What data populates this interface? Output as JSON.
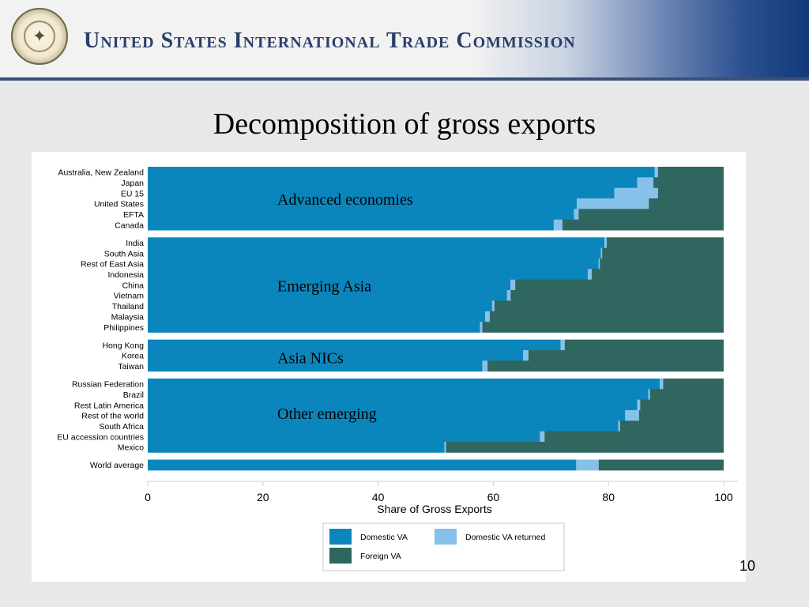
{
  "header": {
    "org_name": "United States International Trade Commission",
    "seal_icon": "usitc-seal-icon"
  },
  "slide": {
    "title": "Decomposition of gross exports",
    "page_number": "10"
  },
  "colors": {
    "domestic": "#0a86bd",
    "returned": "#85c1e9",
    "foreign": "#2f6660",
    "panel_bg": "#ffffff",
    "gap": "#ffffff"
  },
  "chart_data": {
    "type": "bar",
    "orientation": "horizontal",
    "stacked": true,
    "xlabel": "Share of Gross Exports",
    "xlim": [
      0,
      100
    ],
    "xticks": [
      0,
      20,
      40,
      60,
      80,
      100
    ],
    "series": [
      {
        "name": "Domestic VA",
        "color_key": "domestic"
      },
      {
        "name": "Domestic VA returned",
        "color_key": "returned"
      },
      {
        "name": "Foreign VA",
        "color_key": "foreign"
      }
    ],
    "groups": [
      {
        "label": "Advanced economies",
        "rows": [
          {
            "name": "Australia, New Zealand",
            "domestic": 88.0,
            "returned": 0.6
          },
          {
            "name": "Japan",
            "domestic": 85.0,
            "returned": 2.8
          },
          {
            "name": "EU 15",
            "domestic": 81.0,
            "returned": 7.6
          },
          {
            "name": "United States",
            "domestic": 74.5,
            "returned": 12.5
          },
          {
            "name": "EFTA",
            "domestic": 74.0,
            "returned": 0.8
          },
          {
            "name": "Canada",
            "domestic": 70.5,
            "returned": 1.5
          }
        ]
      },
      {
        "label": "Emerging Asia",
        "rows": [
          {
            "name": "India",
            "domestic": 79.3,
            "returned": 0.4
          },
          {
            "name": "South Asia",
            "domestic": 78.7,
            "returned": 0.2
          },
          {
            "name": "Rest of East Asia",
            "domestic": 78.3,
            "returned": 0.2
          },
          {
            "name": "Indonesia",
            "domestic": 76.4,
            "returned": 0.7
          },
          {
            "name": "China",
            "domestic": 63.0,
            "returned": 0.8
          },
          {
            "name": "Vietnam",
            "domestic": 62.4,
            "returned": 0.6
          },
          {
            "name": "Thailand",
            "domestic": 59.8,
            "returned": 0.4
          },
          {
            "name": "Malaysia",
            "domestic": 58.6,
            "returned": 0.8
          },
          {
            "name": "Philippines",
            "domestic": 57.7,
            "returned": 0.4
          }
        ]
      },
      {
        "label": "Asia NICs",
        "rows": [
          {
            "name": "Hong Kong",
            "domestic": 71.7,
            "returned": 0.7
          },
          {
            "name": "Korea",
            "domestic": 65.2,
            "returned": 0.9
          },
          {
            "name": "Taiwan",
            "domestic": 58.1,
            "returned": 0.9
          }
        ]
      },
      {
        "label": "Other emerging",
        "rows": [
          {
            "name": "Russian Federation",
            "domestic": 88.9,
            "returned": 0.6
          },
          {
            "name": "Brazil",
            "domestic": 86.9,
            "returned": 0.3
          },
          {
            "name": "Rest Latin America",
            "domestic": 85.0,
            "returned": 0.5
          },
          {
            "name": "Rest of the world",
            "domestic": 82.9,
            "returned": 2.4
          },
          {
            "name": "South Africa",
            "domestic": 81.7,
            "returned": 0.3
          },
          {
            "name": "EU accession countries",
            "domestic": 68.1,
            "returned": 0.8
          },
          {
            "name": "Mexico",
            "domestic": 51.5,
            "returned": 0.3
          }
        ]
      },
      {
        "label": "",
        "rows": [
          {
            "name": "World average",
            "domestic": 74.4,
            "returned": 3.9
          }
        ]
      }
    ]
  }
}
